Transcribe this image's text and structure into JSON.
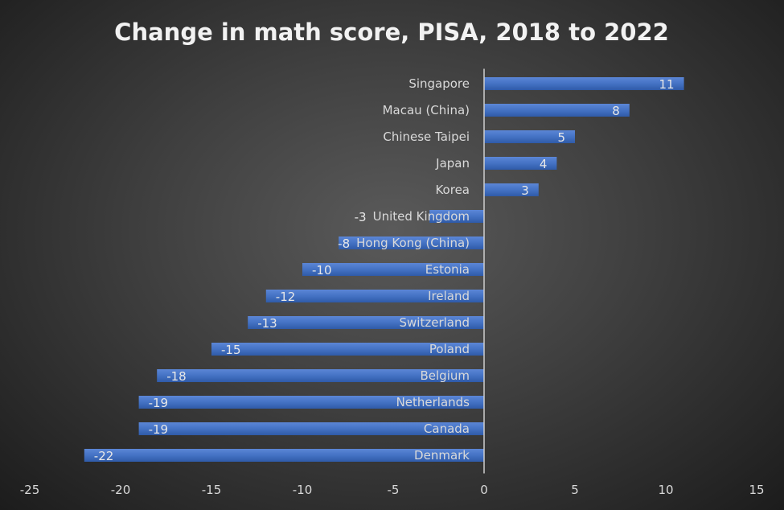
{
  "chart_data": {
    "type": "bar",
    "orientation": "horizontal",
    "title": "Change in math score, PISA, 2018 to 2022",
    "categories": [
      "Singapore",
      "Macau (China)",
      "Chinese Taipei",
      "Japan",
      "Korea",
      "United Kingdom",
      "Hong Kong (China)",
      "Estonia",
      "Ireland",
      "Switzerland",
      "Poland",
      "Belgium",
      "Netherlands",
      "Canada",
      "Denmark"
    ],
    "values": [
      11,
      8,
      5,
      4,
      3,
      -3,
      -8,
      -10,
      -12,
      -13,
      -15,
      -18,
      -19,
      -19,
      -22
    ],
    "xlim": [
      -25,
      15
    ],
    "xticks": [
      -25,
      -20,
      -15,
      -10,
      -5,
      0,
      5,
      10,
      15
    ],
    "grid": false,
    "data_labels": true,
    "bar_color": "#4472C4",
    "background": "dark radial gradient"
  }
}
